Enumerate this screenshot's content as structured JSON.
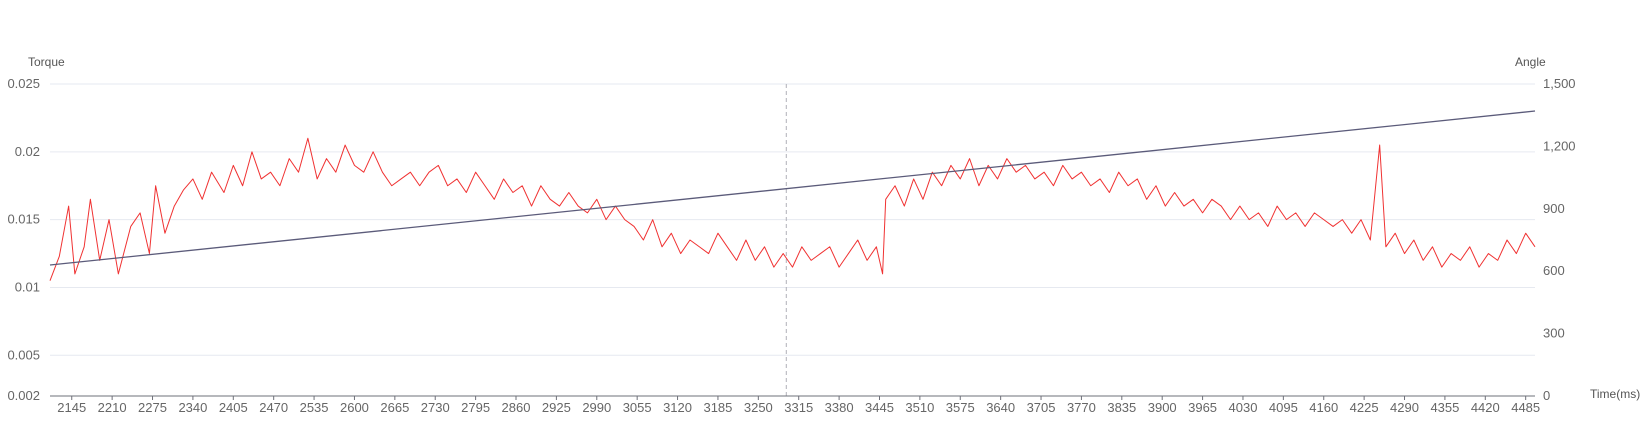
{
  "chart_data": {
    "type": "line",
    "left_axis": {
      "name": "Torque",
      "range": [
        0.002,
        0.025
      ],
      "ticks": [
        {
          "value": 0.002,
          "label": "0.002"
        },
        {
          "value": 0.005,
          "label": "0.005"
        },
        {
          "value": 0.01,
          "label": "0.01"
        },
        {
          "value": 0.015,
          "label": "0.015"
        },
        {
          "value": 0.02,
          "label": "0.02"
        },
        {
          "value": 0.025,
          "label": "0.025"
        }
      ]
    },
    "right_axis": {
      "name": "Angle",
      "range": [
        0,
        1500
      ],
      "ticks": [
        {
          "value": 0,
          "label": "0"
        },
        {
          "value": 300,
          "label": "300"
        },
        {
          "value": 600,
          "label": "600"
        },
        {
          "value": 900,
          "label": "900"
        },
        {
          "value": 1200,
          "label": "1,200"
        },
        {
          "value": 1500,
          "label": "1,500"
        }
      ]
    },
    "x_axis": {
      "name": "Time(ms)",
      "range": [
        2110,
        4500
      ],
      "tick_labels": [
        "2145",
        "2210",
        "2275",
        "2340",
        "2405",
        "2470",
        "2535",
        "2600",
        "2665",
        "2730",
        "2795",
        "2860",
        "2925",
        "2990",
        "3055",
        "3120",
        "3185",
        "3250",
        "3315",
        "3380",
        "3445",
        "3510",
        "3575",
        "3640",
        "3705",
        "3770",
        "3835",
        "3900",
        "3965",
        "4030",
        "4095",
        "4160",
        "4225",
        "4290",
        "4355",
        "4420",
        "4485"
      ]
    },
    "cursor_x": 3295,
    "grid": true,
    "series": [
      {
        "axis": "left",
        "color": "#f03232",
        "points": [
          [
            2110,
            0.0105
          ],
          [
            2125,
            0.0123
          ],
          [
            2140,
            0.016
          ],
          [
            2150,
            0.011
          ],
          [
            2165,
            0.013
          ],
          [
            2175,
            0.0165
          ],
          [
            2190,
            0.012
          ],
          [
            2205,
            0.015
          ],
          [
            2220,
            0.011
          ],
          [
            2240,
            0.0145
          ],
          [
            2255,
            0.0155
          ],
          [
            2270,
            0.0125
          ],
          [
            2280,
            0.0175
          ],
          [
            2295,
            0.014
          ],
          [
            2310,
            0.016
          ],
          [
            2325,
            0.0172
          ],
          [
            2340,
            0.018
          ],
          [
            2355,
            0.0165
          ],
          [
            2370,
            0.0185
          ],
          [
            2390,
            0.017
          ],
          [
            2405,
            0.019
          ],
          [
            2420,
            0.0175
          ],
          [
            2435,
            0.02
          ],
          [
            2450,
            0.018
          ],
          [
            2465,
            0.0185
          ],
          [
            2480,
            0.0175
          ],
          [
            2495,
            0.0195
          ],
          [
            2510,
            0.0185
          ],
          [
            2525,
            0.021
          ],
          [
            2540,
            0.018
          ],
          [
            2555,
            0.0195
          ],
          [
            2570,
            0.0185
          ],
          [
            2585,
            0.0205
          ],
          [
            2600,
            0.019
          ],
          [
            2615,
            0.0185
          ],
          [
            2630,
            0.02
          ],
          [
            2645,
            0.0185
          ],
          [
            2660,
            0.0175
          ],
          [
            2675,
            0.018
          ],
          [
            2690,
            0.0185
          ],
          [
            2705,
            0.0175
          ],
          [
            2720,
            0.0185
          ],
          [
            2735,
            0.019
          ],
          [
            2750,
            0.0175
          ],
          [
            2765,
            0.018
          ],
          [
            2780,
            0.017
          ],
          [
            2795,
            0.0185
          ],
          [
            2810,
            0.0175
          ],
          [
            2825,
            0.0165
          ],
          [
            2840,
            0.018
          ],
          [
            2855,
            0.017
          ],
          [
            2870,
            0.0175
          ],
          [
            2885,
            0.016
          ],
          [
            2900,
            0.0175
          ],
          [
            2915,
            0.0165
          ],
          [
            2930,
            0.016
          ],
          [
            2945,
            0.017
          ],
          [
            2960,
            0.016
          ],
          [
            2975,
            0.0155
          ],
          [
            2990,
            0.0165
          ],
          [
            3005,
            0.015
          ],
          [
            3020,
            0.016
          ],
          [
            3035,
            0.015
          ],
          [
            3050,
            0.0145
          ],
          [
            3065,
            0.0135
          ],
          [
            3080,
            0.015
          ],
          [
            3095,
            0.013
          ],
          [
            3110,
            0.014
          ],
          [
            3125,
            0.0125
          ],
          [
            3140,
            0.0135
          ],
          [
            3155,
            0.013
          ],
          [
            3170,
            0.0125
          ],
          [
            3185,
            0.014
          ],
          [
            3200,
            0.013
          ],
          [
            3215,
            0.012
          ],
          [
            3230,
            0.0135
          ],
          [
            3245,
            0.012
          ],
          [
            3260,
            0.013
          ],
          [
            3275,
            0.0115
          ],
          [
            3290,
            0.0125
          ],
          [
            3305,
            0.0115
          ],
          [
            3320,
            0.013
          ],
          [
            3335,
            0.012
          ],
          [
            3350,
            0.0125
          ],
          [
            3365,
            0.013
          ],
          [
            3380,
            0.0115
          ],
          [
            3395,
            0.0125
          ],
          [
            3410,
            0.0135
          ],
          [
            3425,
            0.012
          ],
          [
            3440,
            0.013
          ],
          [
            3450,
            0.011
          ],
          [
            3455,
            0.0165
          ],
          [
            3470,
            0.0175
          ],
          [
            3485,
            0.016
          ],
          [
            3500,
            0.018
          ],
          [
            3515,
            0.0165
          ],
          [
            3530,
            0.0185
          ],
          [
            3545,
            0.0175
          ],
          [
            3560,
            0.019
          ],
          [
            3575,
            0.018
          ],
          [
            3590,
            0.0195
          ],
          [
            3605,
            0.0175
          ],
          [
            3620,
            0.019
          ],
          [
            3635,
            0.018
          ],
          [
            3650,
            0.0195
          ],
          [
            3665,
            0.0185
          ],
          [
            3680,
            0.019
          ],
          [
            3695,
            0.018
          ],
          [
            3710,
            0.0185
          ],
          [
            3725,
            0.0175
          ],
          [
            3740,
            0.019
          ],
          [
            3755,
            0.018
          ],
          [
            3770,
            0.0185
          ],
          [
            3785,
            0.0175
          ],
          [
            3800,
            0.018
          ],
          [
            3815,
            0.017
          ],
          [
            3830,
            0.0185
          ],
          [
            3845,
            0.0175
          ],
          [
            3860,
            0.018
          ],
          [
            3875,
            0.0165
          ],
          [
            3890,
            0.0175
          ],
          [
            3905,
            0.016
          ],
          [
            3920,
            0.017
          ],
          [
            3935,
            0.016
          ],
          [
            3950,
            0.0165
          ],
          [
            3965,
            0.0155
          ],
          [
            3980,
            0.0165
          ],
          [
            3995,
            0.016
          ],
          [
            4010,
            0.015
          ],
          [
            4025,
            0.016
          ],
          [
            4040,
            0.015
          ],
          [
            4055,
            0.0155
          ],
          [
            4070,
            0.0145
          ],
          [
            4085,
            0.016
          ],
          [
            4100,
            0.015
          ],
          [
            4115,
            0.0155
          ],
          [
            4130,
            0.0145
          ],
          [
            4145,
            0.0155
          ],
          [
            4160,
            0.015
          ],
          [
            4175,
            0.0145
          ],
          [
            4190,
            0.015
          ],
          [
            4205,
            0.014
          ],
          [
            4220,
            0.015
          ],
          [
            4235,
            0.0135
          ],
          [
            4250,
            0.0205
          ],
          [
            4260,
            0.013
          ],
          [
            4275,
            0.014
          ],
          [
            4290,
            0.0125
          ],
          [
            4305,
            0.0135
          ],
          [
            4320,
            0.012
          ],
          [
            4335,
            0.013
          ],
          [
            4350,
            0.0115
          ],
          [
            4365,
            0.0125
          ],
          [
            4380,
            0.012
          ],
          [
            4395,
            0.013
          ],
          [
            4410,
            0.0115
          ],
          [
            4425,
            0.0125
          ],
          [
            4440,
            0.012
          ],
          [
            4455,
            0.0135
          ],
          [
            4470,
            0.0125
          ],
          [
            4485,
            0.014
          ],
          [
            4500,
            0.013
          ]
        ]
      },
      {
        "axis": "right",
        "color": "#5b5b7a",
        "points": [
          [
            2110,
            630
          ],
          [
            4500,
            1370
          ]
        ]
      }
    ]
  }
}
